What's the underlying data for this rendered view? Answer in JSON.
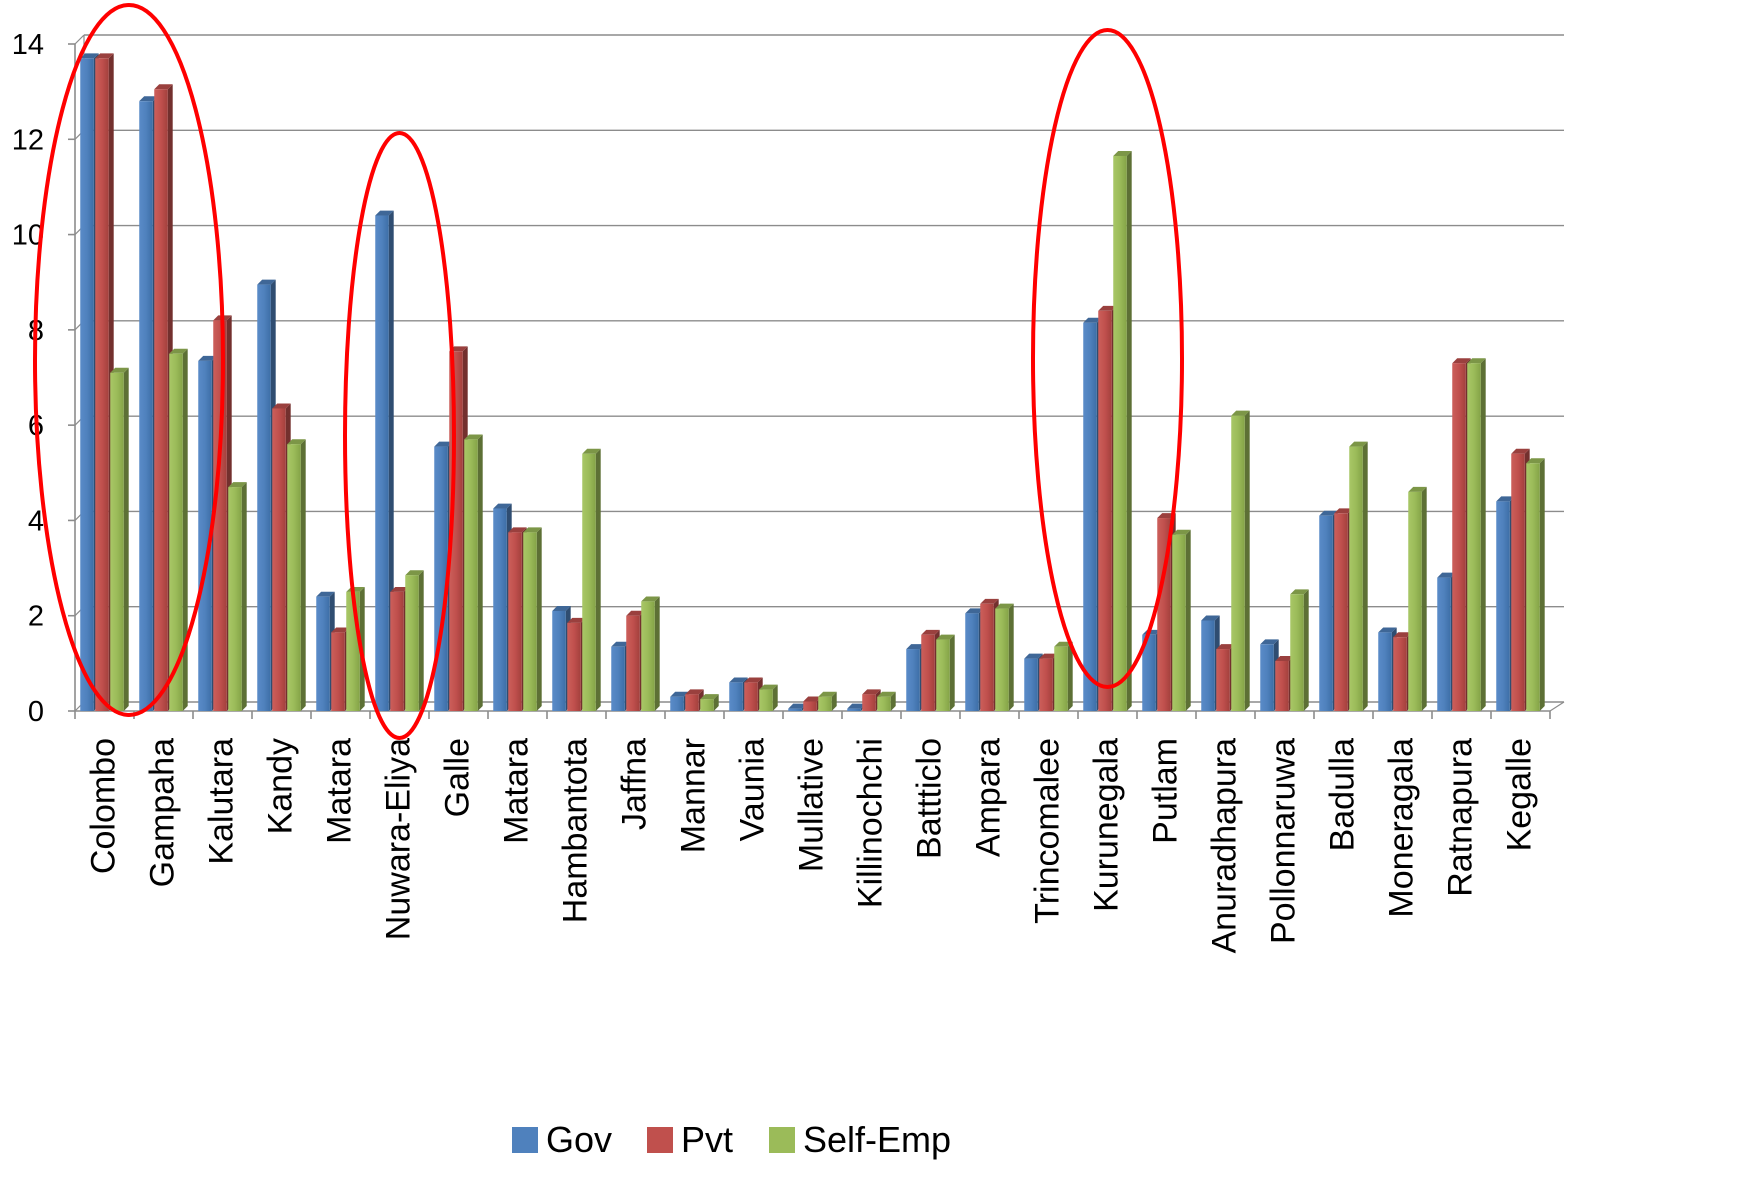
{
  "chart_data": {
    "type": "bar",
    "title": "",
    "xlabel": "",
    "ylabel": "",
    "ylim": [
      0,
      14
    ],
    "yticks": [
      0,
      2,
      4,
      6,
      8,
      10,
      12,
      14
    ],
    "grid": true,
    "legend": "bottom",
    "categories": [
      "Colombo",
      "Gampaha",
      "Kalutara",
      "Kandy",
      "Matara",
      "Nuwara-Eliya",
      "Galle",
      "Matara",
      "Hambantota",
      "Jaffna",
      "Mannar",
      "Vaunia",
      "Mullative",
      "Killinochchi",
      "Battticlo",
      "Ampara",
      "Trincomalee",
      "Kurunegala",
      "Putlam",
      "Anuradhapura",
      "Pollonnaruwa",
      "Badulla",
      "Moneragala",
      "Ratnapura",
      "Kegalle"
    ],
    "series": [
      {
        "name": "Gov",
        "color": "#4f81bd",
        "values": [
          13.7,
          12.8,
          7.35,
          8.95,
          2.4,
          10.4,
          5.55,
          4.25,
          2.1,
          1.35,
          0.3,
          0.6,
          0.05,
          0.05,
          1.3,
          2.05,
          1.1,
          8.15,
          1.6,
          1.9,
          1.4,
          4.1,
          1.65,
          2.8,
          4.4
        ]
      },
      {
        "name": "Pvt",
        "color": "#c0504d",
        "values": [
          13.7,
          13.05,
          8.2,
          6.35,
          1.65,
          2.5,
          7.55,
          3.75,
          1.85,
          2.0,
          0.35,
          0.6,
          0.2,
          0.35,
          1.6,
          2.25,
          1.1,
          8.4,
          4.05,
          1.3,
          1.05,
          4.15,
          1.55,
          7.3,
          5.4
        ]
      },
      {
        "name": "Self-Emp",
        "color": "#9bbb59",
        "values": [
          7.1,
          7.5,
          4.7,
          5.6,
          2.5,
          2.85,
          5.7,
          3.75,
          5.4,
          2.3,
          0.25,
          0.45,
          0.3,
          0.3,
          1.5,
          2.15,
          1.35,
          11.65,
          3.7,
          6.2,
          2.45,
          5.55,
          4.6,
          7.3,
          5.2
        ]
      }
    ],
    "annotations": [
      {
        "type": "ellipse",
        "color": "#ff0000",
        "covers": [
          "Colombo",
          "Gampaha"
        ]
      },
      {
        "type": "ellipse",
        "color": "#ff0000",
        "covers": [
          "Nuwara-Eliya"
        ]
      },
      {
        "type": "ellipse",
        "color": "#ff0000",
        "covers": [
          "Kurunegala"
        ]
      }
    ]
  }
}
